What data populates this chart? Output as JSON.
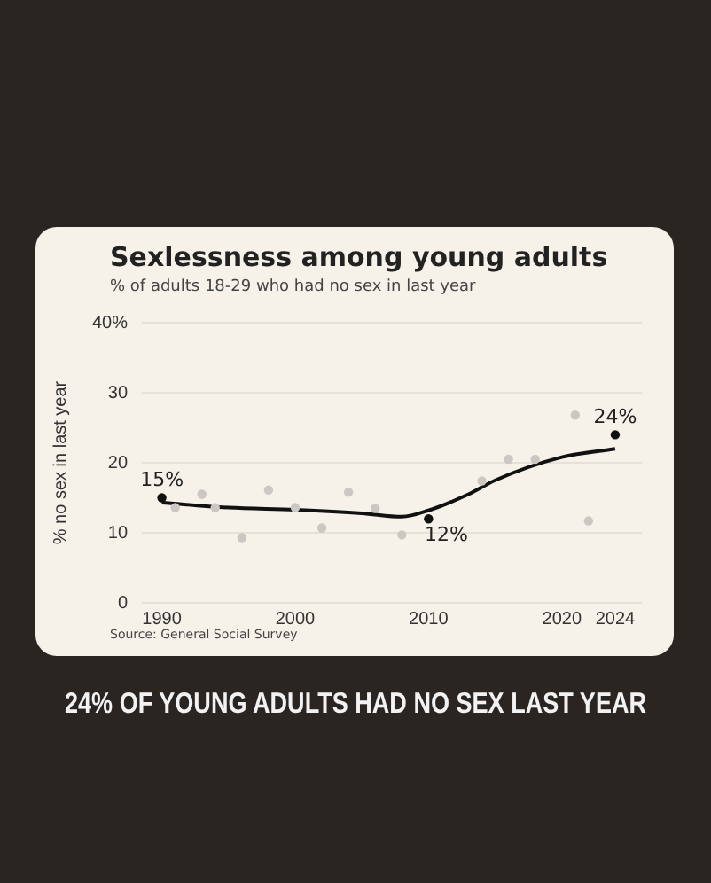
{
  "chart_data": {
    "type": "scatter",
    "title": "Sexlessness among young adults",
    "subtitle": "% of adults 18-29 who had no sex in last year",
    "ylabel": "% no sex in last year",
    "annotations": [
      "Source: General Social Survey",
      "24% OF YOUNG ADULTS HAD NO SEX LAST YEAR"
    ],
    "xlim": [
      1988.5,
      2026
    ],
    "xticks": [
      1990,
      2000,
      2010,
      2020,
      2024
    ],
    "ylim": [
      0,
      40
    ],
    "yticks": [
      0,
      10,
      20,
      30,
      {
        "value": 40,
        "label": "40%"
      }
    ],
    "grid": "y",
    "legend": false,
    "marker": "circle",
    "series": [
      {
        "color": "#cbc7c2",
        "x": [
          1991,
          1993,
          1994,
          1996,
          1998,
          2000,
          2002,
          2004,
          2006,
          2008,
          2014,
          2016,
          2018,
          2021,
          2022
        ],
        "values": [
          13.6,
          15.5,
          13.6,
          9.3,
          16.1,
          13.6,
          10.7,
          15.8,
          13.5,
          9.7,
          17.4,
          20.5,
          20.5,
          26.8,
          11.7
        ]
      },
      {
        "type": "line",
        "color": "#111111",
        "marker": "none",
        "x": [
          1990,
          1995,
          2000,
          2005,
          2008,
          2010,
          2013,
          2015,
          2020,
          2024
        ],
        "values": [
          14.3,
          13.6,
          13.3,
          12.8,
          12.3,
          13.2,
          15.5,
          17.5,
          20.8,
          22
        ]
      },
      {
        "color": "#111111",
        "x": [
          1990,
          2010,
          2024
        ],
        "values": [
          15,
          12,
          24
        ],
        "value_labels": [
          "15%",
          "12%",
          "24%"
        ]
      }
    ]
  }
}
